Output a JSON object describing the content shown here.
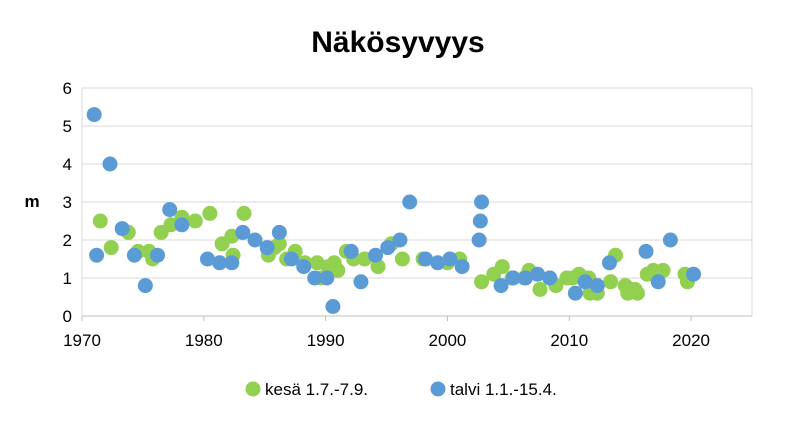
{
  "chart_data": {
    "type": "scatter",
    "title": "Näkösyvyys",
    "ylabel": "m",
    "xlabel": "",
    "xlim": [
      1970,
      2025
    ],
    "ylim": [
      0,
      6
    ],
    "xticks": [
      "1970",
      "1980",
      "1990",
      "2000",
      "2010",
      "2020"
    ],
    "yticks": [
      "0",
      "1",
      "2",
      "3",
      "4",
      "5",
      "6"
    ],
    "grid": true,
    "legend_position": "bottom",
    "series": [
      {
        "name": "kesä 1.7.-7.9.",
        "color": "#92d050",
        "points": [
          [
            1971.5,
            2.5
          ],
          [
            1972.4,
            1.8
          ],
          [
            1973.8,
            2.2
          ],
          [
            1974.6,
            1.7
          ],
          [
            1975.5,
            1.7
          ],
          [
            1975.8,
            1.5
          ],
          [
            1976.5,
            2.2
          ],
          [
            1977.3,
            2.4
          ],
          [
            1978.2,
            2.6
          ],
          [
            1979.3,
            2.5
          ],
          [
            1980.5,
            2.7
          ],
          [
            1981.5,
            1.9
          ],
          [
            1982.3,
            2.1
          ],
          [
            1982.4,
            1.6
          ],
          [
            1983.3,
            2.7
          ],
          [
            1985.3,
            1.6
          ],
          [
            1985.8,
            1.8
          ],
          [
            1986.2,
            1.9
          ],
          [
            1986.8,
            1.5
          ],
          [
            1987.5,
            1.7
          ],
          [
            1988.3,
            1.4
          ],
          [
            1989.3,
            1.4
          ],
          [
            1989.6,
            1.0
          ],
          [
            1990.2,
            1.3
          ],
          [
            1990.5,
            1.3
          ],
          [
            1990.7,
            1.4
          ],
          [
            1991.0,
            1.2
          ],
          [
            1991.7,
            1.7
          ],
          [
            1992.3,
            1.5
          ],
          [
            1993.2,
            1.5
          ],
          [
            1994.3,
            1.3
          ],
          [
            1995.4,
            1.9
          ],
          [
            1996.3,
            1.5
          ],
          [
            1998.0,
            1.5
          ],
          [
            2000.0,
            1.4
          ],
          [
            2001.0,
            1.5
          ],
          [
            2002.8,
            0.9
          ],
          [
            2003.8,
            1.1
          ],
          [
            2004.5,
            1.3
          ],
          [
            2005.3,
            1.0
          ],
          [
            2006.3,
            1.0
          ],
          [
            2006.7,
            1.2
          ],
          [
            2007.6,
            0.7
          ],
          [
            2008.4,
            1.0
          ],
          [
            2008.9,
            0.8
          ],
          [
            2009.8,
            1.0
          ],
          [
            2010.3,
            1.0
          ],
          [
            2010.8,
            1.1
          ],
          [
            2011.6,
            1.0
          ],
          [
            2011.7,
            0.6
          ],
          [
            2012.3,
            0.6
          ],
          [
            2013.4,
            0.9
          ],
          [
            2013.8,
            1.6
          ],
          [
            2014.6,
            0.8
          ],
          [
            2014.8,
            0.6
          ],
          [
            2015.4,
            0.7
          ],
          [
            2015.6,
            0.6
          ],
          [
            2016.4,
            1.1
          ],
          [
            2016.9,
            1.2
          ],
          [
            2017.7,
            1.2
          ],
          [
            2019.5,
            1.1
          ],
          [
            2019.7,
            0.9
          ]
        ]
      },
      {
        "name": "talvi 1.1.-15.4.",
        "color": "#5b9bd5",
        "points": [
          [
            1971.0,
            5.3
          ],
          [
            1971.2,
            1.6
          ],
          [
            1972.3,
            4.0
          ],
          [
            1973.3,
            2.3
          ],
          [
            1974.3,
            1.6
          ],
          [
            1975.2,
            0.8
          ],
          [
            1976.2,
            1.6
          ],
          [
            1977.2,
            2.8
          ],
          [
            1978.2,
            2.4
          ],
          [
            1980.3,
            1.5
          ],
          [
            1981.3,
            1.4
          ],
          [
            1982.3,
            1.4
          ],
          [
            1983.2,
            2.2
          ],
          [
            1984.2,
            2.0
          ],
          [
            1985.2,
            1.8
          ],
          [
            1986.2,
            2.2
          ],
          [
            1987.2,
            1.5
          ],
          [
            1988.2,
            1.3
          ],
          [
            1989.1,
            1.0
          ],
          [
            1990.1,
            1.0
          ],
          [
            1990.6,
            0.25
          ],
          [
            1992.1,
            1.7
          ],
          [
            1992.9,
            0.9
          ],
          [
            1994.1,
            1.6
          ],
          [
            1995.1,
            1.8
          ],
          [
            1996.1,
            2.0
          ],
          [
            1996.9,
            3.0
          ],
          [
            1998.2,
            1.5
          ],
          [
            1999.2,
            1.4
          ],
          [
            2000.2,
            1.5
          ],
          [
            2001.2,
            1.3
          ],
          [
            2002.6,
            2.0
          ],
          [
            2002.7,
            2.5
          ],
          [
            2002.8,
            3.0
          ],
          [
            2004.4,
            0.8
          ],
          [
            2005.4,
            1.0
          ],
          [
            2006.4,
            1.0
          ],
          [
            2007.4,
            1.1
          ],
          [
            2008.4,
            1.0
          ],
          [
            2010.5,
            0.6
          ],
          [
            2011.3,
            0.9
          ],
          [
            2012.3,
            0.8
          ],
          [
            2013.3,
            1.4
          ],
          [
            2016.3,
            1.7
          ],
          [
            2017.3,
            0.9
          ],
          [
            2018.3,
            2.0
          ],
          [
            2020.2,
            1.1
          ]
        ]
      }
    ]
  }
}
